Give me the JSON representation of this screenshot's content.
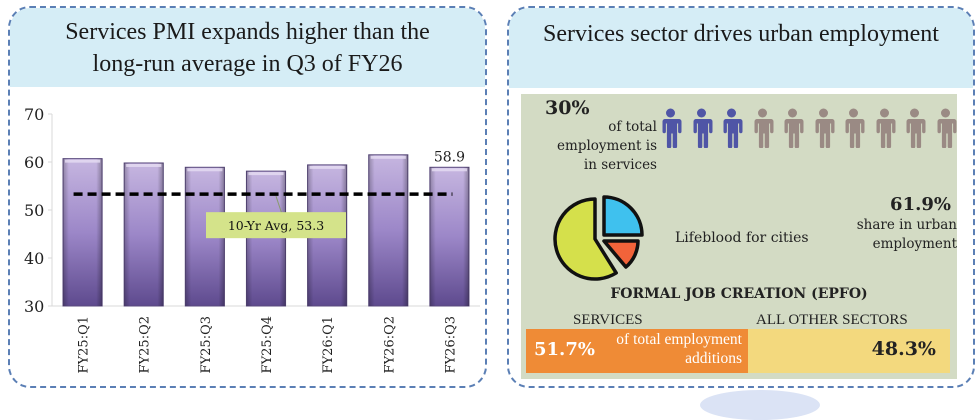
{
  "left_panel": {
    "title_line1": "Services PMI expands higher than the",
    "title_line2": "long-run average in Q3 of FY26"
  },
  "chart_data": {
    "type": "bar",
    "title": "Services PMI expands higher than the long-run average in Q3 of FY26",
    "xlabel": "",
    "ylabel": "",
    "categories": [
      "FY25:Q1",
      "FY25:Q2",
      "FY25:Q3",
      "FY25:Q4",
      "FY26:Q1",
      "FY26:Q2",
      "FY26:Q3"
    ],
    "values": [
      60.7,
      59.8,
      58.9,
      58.1,
      59.4,
      61.5,
      58.9
    ],
    "ylim": [
      30,
      70
    ],
    "yticks": [
      30,
      40,
      50,
      60,
      70
    ],
    "data_labels": {
      "FY26:Q3": "58.9"
    },
    "reference_line": {
      "label": "10-Yr Avg, 53.3",
      "value": 53.3,
      "style": "dashed"
    },
    "grid": false,
    "legend": "none",
    "bar_color": "#8c78b8"
  },
  "right_panel": {
    "title": "Services sector drives urban employment",
    "employment_share": {
      "value": "30%",
      "text_lines": [
        "of total",
        "employment is",
        "in services"
      ],
      "people_total": 10,
      "people_highlighted": 3,
      "highlight_color": "#4f55a6",
      "other_color": "#9a8a84"
    },
    "urban": {
      "value": "61.9%",
      "text_lines": [
        "share in urban",
        "employment"
      ],
      "tagline": "Lifeblood for cities"
    },
    "pie_icon": {
      "colors": [
        "#3fc1ee",
        "#f2633a",
        "#d5e04b"
      ]
    },
    "epfo": {
      "title": "FORMAL JOB CREATION (EPFO)",
      "services_label": "SERVICES",
      "others_label": "ALL OTHER SECTORS",
      "services_value": "51.7%",
      "services_share": 51.7,
      "services_text_lines": [
        "of total employment",
        "additions"
      ],
      "others_value": "48.3%",
      "others_share": 48.3
    }
  }
}
